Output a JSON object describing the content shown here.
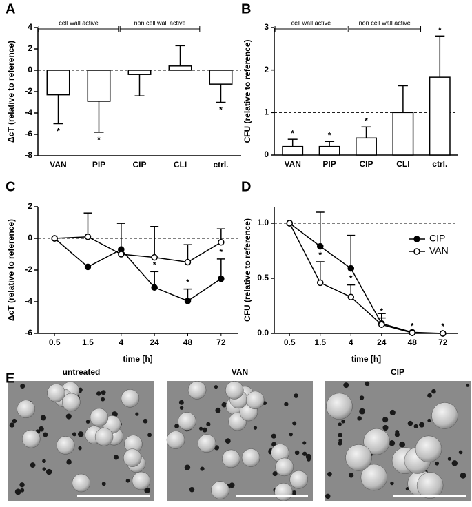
{
  "chart_data": [
    {
      "type": "bar",
      "panel": "A",
      "ylabel": "ΔcT (relative to reference)",
      "categories": [
        "VAN",
        "PIP",
        "CIP",
        "CLI",
        "ctrl."
      ],
      "values": [
        -2.3,
        -2.9,
        -0.4,
        0.4,
        -1.3
      ],
      "errors": [
        2.7,
        2.9,
        2.0,
        1.9,
        1.7
      ],
      "significance": [
        "*",
        "*",
        null,
        null,
        "*"
      ],
      "groups": [
        {
          "label": "cell wall active",
          "categories": [
            "VAN",
            "PIP"
          ]
        },
        {
          "label": "non cell wall active",
          "categories": [
            "CIP",
            "CLI"
          ]
        }
      ],
      "reference_line": 0,
      "ylim": [
        -8,
        4
      ],
      "yticks": [
        -8,
        -6,
        -4,
        -2,
        0,
        2,
        4
      ],
      "color": "#ffffff"
    },
    {
      "type": "bar",
      "panel": "B",
      "ylabel": "CFU (relative to reference)",
      "categories": [
        "VAN",
        "PIP",
        "CIP",
        "CLI",
        "ctrl."
      ],
      "values": [
        0.2,
        0.2,
        0.4,
        1.0,
        1.83
      ],
      "errors": [
        0.17,
        0.12,
        0.26,
        0.63,
        0.97
      ],
      "significance": [
        "*",
        "*",
        "*",
        null,
        "*"
      ],
      "groups": [
        {
          "label": "cell wall active",
          "categories": [
            "VAN",
            "PIP"
          ]
        },
        {
          "label": "non cell wall active",
          "categories": [
            "CIP",
            "CLI"
          ]
        }
      ],
      "reference_line": 1,
      "ylim": [
        0,
        3
      ],
      "yticks": [
        0,
        1,
        2,
        3
      ],
      "color": "#ffffff"
    },
    {
      "type": "line",
      "panel": "C",
      "ylabel": "ΔcT (relative to reference)",
      "xlabel": "time [h]",
      "categories": [
        "0.5",
        "1.5",
        "4",
        "24",
        "48",
        "72"
      ],
      "series": [
        {
          "color": "#000000",
          "values": [
            0,
            -1.8,
            -0.7,
            -3.1,
            -3.95,
            -2.55
          ],
          "errors": [
            null,
            null,
            1.65,
            1.0,
            0.75,
            1.25
          ],
          "significance": [
            null,
            null,
            null,
            "*",
            "*",
            "*"
          ]
        },
        {
          "color": "#ffffff",
          "values": [
            0,
            0.1,
            -1.0,
            -1.2,
            -1.5,
            -0.25
          ],
          "errors": [
            null,
            1.5,
            null,
            1.95,
            1.1,
            0.85
          ],
          "significance": [
            null,
            null,
            null,
            null,
            null,
            null
          ]
        }
      ],
      "reference_line": 0,
      "ylim": [
        -6,
        2
      ],
      "yticks": [
        -6,
        -4,
        -2,
        0,
        2
      ]
    },
    {
      "type": "line",
      "panel": "D",
      "ylabel": "CFU (relative to reference)",
      "xlabel": "time [h]",
      "categories": [
        "0.5",
        "1.5",
        "4",
        "24",
        "48",
        "72"
      ],
      "series": [
        {
          "name": "CIP",
          "color": "#000000",
          "values": [
            1.0,
            0.79,
            0.59,
            0.09,
            0.01,
            0.0
          ],
          "errors": [
            null,
            0.31,
            0.3,
            0.09,
            null,
            null
          ],
          "significance": [
            null,
            null,
            null,
            null,
            null,
            null
          ]
        },
        {
          "name": "VAN",
          "color": "#ffffff",
          "values": [
            1.0,
            0.46,
            0.33,
            0.08,
            0.005,
            0.0
          ],
          "errors": [
            null,
            0.19,
            0.11,
            0.06,
            null,
            null
          ],
          "significance": [
            null,
            "*",
            "*",
            "*",
            "*",
            "*"
          ]
        }
      ],
      "legend": "right",
      "reference_line": 1.0,
      "ylim": [
        0,
        1.15
      ],
      "yticks": [
        {
          "value": 0,
          "label": "0.0"
        },
        {
          "value": 0.5,
          "label": "0.5"
        },
        {
          "value": 1,
          "label": "1.0"
        }
      ]
    }
  ],
  "images": {
    "panel": "E",
    "labels": [
      "untreated",
      "VAN",
      "CIP"
    ]
  }
}
